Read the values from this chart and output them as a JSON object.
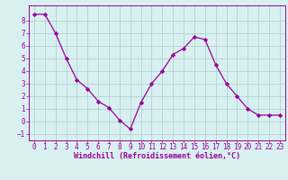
{
  "x": [
    0,
    1,
    2,
    3,
    4,
    5,
    6,
    7,
    8,
    9,
    10,
    11,
    12,
    13,
    14,
    15,
    16,
    17,
    18,
    19,
    20,
    21,
    22,
    23
  ],
  "y": [
    8.5,
    8.5,
    7.0,
    5.0,
    3.3,
    2.6,
    1.6,
    1.1,
    0.1,
    -0.6,
    1.5,
    3.0,
    4.0,
    5.3,
    5.8,
    6.7,
    6.5,
    4.5,
    3.0,
    2.0,
    1.0,
    0.5,
    0.5,
    0.5
  ],
  "line_color": "#990099",
  "marker": "D",
  "marker_size": 2.2,
  "bg_color": "#d9f0f0",
  "grid_color": "#aacccc",
  "xlabel": "Windchill (Refroidissement éolien,°C)",
  "xlabel_color": "#990099",
  "tick_color": "#990099",
  "ylim": [
    -1.5,
    9.2
  ],
  "xlim": [
    -0.5,
    23.5
  ],
  "yticks": [
    -1,
    0,
    1,
    2,
    3,
    4,
    5,
    6,
    7,
    8
  ],
  "xticks": [
    0,
    1,
    2,
    3,
    4,
    5,
    6,
    7,
    8,
    9,
    10,
    11,
    12,
    13,
    14,
    15,
    16,
    17,
    18,
    19,
    20,
    21,
    22,
    23
  ],
  "spine_color": "#990099",
  "tick_fontsize": 5.5,
  "xlabel_fontsize": 6.0,
  "linewidth": 0.9
}
